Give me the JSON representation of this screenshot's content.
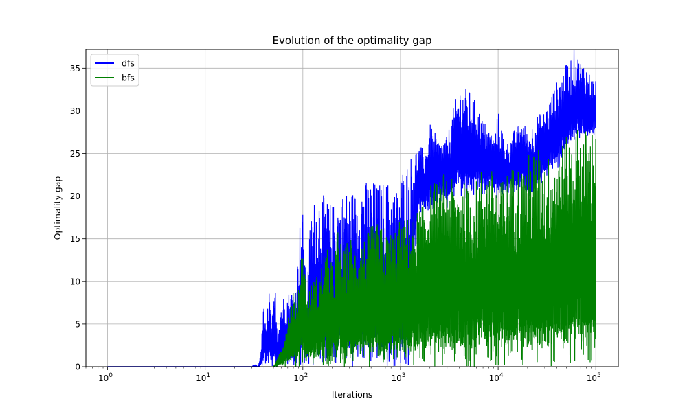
{
  "chart_data": {
    "type": "line",
    "title": "Evolution of the optimality gap",
    "xlabel": "Iterations",
    "ylabel": "Optimality gap",
    "xscale": "log",
    "xlim": [
      0.6,
      170000
    ],
    "ylim": [
      0,
      37.2
    ],
    "xticks": [
      {
        "value": 1,
        "base": "10",
        "exp": "0"
      },
      {
        "value": 10,
        "base": "10",
        "exp": "1"
      },
      {
        "value": 100,
        "base": "10",
        "exp": "2"
      },
      {
        "value": 1000,
        "base": "10",
        "exp": "3"
      },
      {
        "value": 10000,
        "base": "10",
        "exp": "4"
      },
      {
        "value": 100000,
        "base": "10",
        "exp": "5"
      }
    ],
    "yticks": [
      "0",
      "5",
      "10",
      "15",
      "20",
      "25",
      "30",
      "35"
    ],
    "grid": true,
    "legend": {
      "position": "upper-left"
    },
    "series": [
      {
        "name": "dfs",
        "color": "#0000ff",
        "x": [
          1,
          30,
          32,
          35,
          37,
          40,
          42,
          45,
          48,
          52,
          55,
          60,
          65,
          70,
          75,
          80,
          85,
          90,
          95,
          100,
          110,
          120,
          130,
          150,
          170,
          200,
          230,
          260,
          300,
          350,
          400,
          450,
          500,
          600,
          700,
          800,
          900,
          1000,
          1200,
          1500,
          1800,
          2000,
          2500,
          3000,
          3500,
          4000,
          5000,
          6000,
          7000,
          8000,
          9000,
          10000,
          12000,
          15000,
          18000,
          20000,
          25000,
          30000,
          40000,
          50000,
          60000,
          70000,
          80000,
          90000,
          100000
        ],
        "upper": [
          0,
          0,
          0.2,
          0,
          1.8,
          7.8,
          4.0,
          9.7,
          5.0,
          9.7,
          4.0,
          8.0,
          8.5,
          8.8,
          9.0,
          9.2,
          10.0,
          14.0,
          18.4,
          18.2,
          9.0,
          18.0,
          19.5,
          20.7,
          19.8,
          19.0,
          20.0,
          20.5,
          21.0,
          20.5,
          22.0,
          21.8,
          22.0,
          21.5,
          22.0,
          21.5,
          20.8,
          23.0,
          24.5,
          26.0,
          25.5,
          28.5,
          26.5,
          27.0,
          30.5,
          33.0,
          32.5,
          31.0,
          29.0,
          28.0,
          27.0,
          30.0,
          26.0,
          28.0,
          29.0,
          27.5,
          29.5,
          30.0,
          33.5,
          35.5,
          37.2,
          36.0,
          35.5,
          34.0,
          33.5
        ],
        "lower": [
          0,
          0,
          0,
          0,
          0,
          0,
          0,
          0,
          0,
          0,
          0,
          0,
          0,
          0,
          0,
          0,
          0,
          0,
          0,
          0,
          0,
          0,
          0,
          0,
          0,
          0,
          0,
          0,
          0,
          0,
          0,
          0,
          0,
          0,
          0,
          0,
          0,
          0,
          0,
          17.5,
          18.0,
          17.5,
          19.5,
          18.5,
          19.5,
          20.0,
          19.5,
          20.5,
          20.0,
          21.0,
          20.0,
          19.5,
          20.5,
          20.0,
          21.5,
          19.0,
          20.0,
          22.0,
          23.0,
          24.5,
          26.0,
          26.0,
          26.5,
          27.0,
          27.0
        ]
      },
      {
        "name": "bfs",
        "color": "#008000",
        "x": [
          50,
          55,
          60,
          65,
          70,
          75,
          80,
          85,
          90,
          95,
          100,
          110,
          120,
          130,
          150,
          170,
          200,
          230,
          260,
          300,
          350,
          400,
          450,
          500,
          600,
          700,
          800,
          900,
          1000,
          1200,
          1500,
          1800,
          2000,
          2500,
          3000,
          3500,
          4000,
          5000,
          6000,
          7000,
          8000,
          9000,
          10000,
          12000,
          15000,
          18000,
          20000,
          25000,
          30000,
          40000,
          50000,
          60000,
          70000,
          80000,
          90000,
          100000
        ],
        "upper": [
          0,
          1.0,
          2.5,
          3.5,
          6.0,
          7.5,
          9.0,
          8.5,
          10.0,
          13.0,
          14.5,
          8.5,
          9.5,
          10.5,
          11.0,
          14.5,
          12.0,
          16.3,
          13.5,
          15.5,
          14.5,
          15.0,
          15.5,
          16.5,
          17.0,
          15.5,
          16.0,
          16.5,
          17.5,
          17.5,
          18.5,
          20.0,
          21.5,
          22.0,
          23.5,
          21.5,
          22.5,
          21.0,
          22.0,
          24.0,
          23.5,
          23.0,
          21.0,
          23.0,
          24.0,
          23.5,
          25.0,
          26.0,
          24.5,
          26.0,
          27.0,
          28.0,
          28.5,
          28.0,
          28.5,
          28.0
        ],
        "lower": [
          0,
          0,
          0,
          0,
          0,
          0,
          0,
          0,
          0,
          0,
          0,
          0,
          0,
          0,
          0,
          0,
          0,
          0,
          0,
          0,
          0,
          0,
          0,
          0,
          0,
          0,
          0,
          0,
          0,
          0,
          0,
          0,
          0,
          0,
          0,
          0,
          0,
          0,
          0,
          0,
          0,
          0,
          0,
          0,
          0,
          0,
          0,
          0,
          0,
          0,
          0,
          0,
          0,
          0,
          0,
          0
        ]
      }
    ]
  }
}
